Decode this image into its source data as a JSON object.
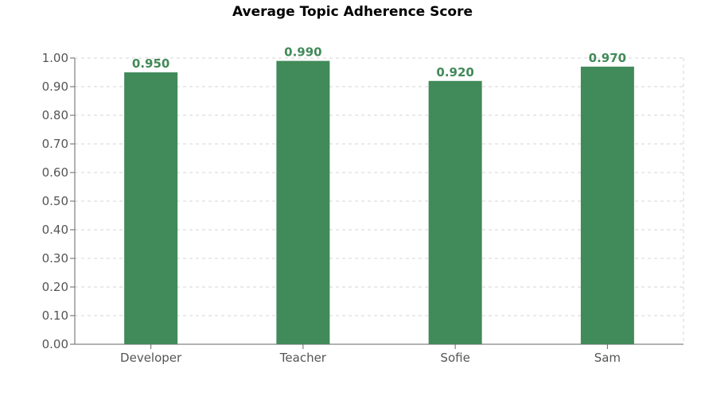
{
  "chart_data": {
    "type": "bar",
    "title": "Average Topic Adherence Score",
    "categories": [
      "Developer",
      "Teacher",
      "Sofie",
      "Sam"
    ],
    "values": [
      0.95,
      0.99,
      0.92,
      0.97
    ],
    "value_labels": [
      "0.950",
      "0.990",
      "0.920",
      "0.970"
    ],
    "ylim": [
      0,
      1
    ],
    "yticks": [
      "0.00",
      "0.10",
      "0.20",
      "0.30",
      "0.40",
      "0.50",
      "0.60",
      "0.70",
      "0.80",
      "0.90",
      "1.00"
    ],
    "grid": true,
    "bar_color": "#418a59",
    "label_color": "#418a59",
    "xlabel": "",
    "ylabel": ""
  }
}
